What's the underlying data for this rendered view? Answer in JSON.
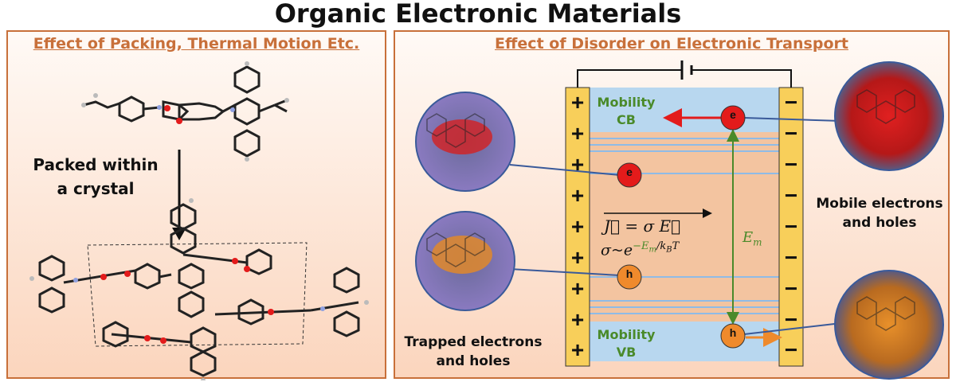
{
  "title": "Organic Electronic Materials",
  "left_panel": {
    "heading": "Effect of Packing, Thermal Motion Etc.",
    "arrow_label_line1": "Packed within",
    "arrow_label_line2": "a crystal"
  },
  "right_panel": {
    "heading": "Effect of Disorder on Electronic Transport",
    "plus_sign": "+",
    "minus_sign": "−",
    "cb_label_line1": "Mobility",
    "cb_label_line2": "CB",
    "vb_label_line1": "Mobility",
    "vb_label_line2": "VB",
    "electron_symbol": "e",
    "hole_symbol": "h",
    "current_eq": "J⃗ = σ E⃗",
    "sigma_eq_base": "σ~e",
    "sigma_eq_exp": "−E",
    "sigma_eq_exp_sub": "m",
    "sigma_eq_exp_tail": "/k",
    "sigma_eq_kb_sub": "B",
    "sigma_eq_T": "T",
    "em_label": "E",
    "em_sub": "m",
    "mobile_label_line1": "Mobile electrons",
    "mobile_label_line2": "and holes",
    "trapped_label_line1": "Trapped electrons",
    "trapped_label_line2": "and holes"
  },
  "colors": {
    "panel_border": "#c8703a",
    "heading": "#c8703a",
    "band": "#b8d7ef",
    "electrode": "#f8cf5a",
    "electron": "#e31b1b",
    "hole": "#ef8a2c",
    "em_arrow": "#4a8a2a",
    "level_line": "#8fbbe6"
  }
}
